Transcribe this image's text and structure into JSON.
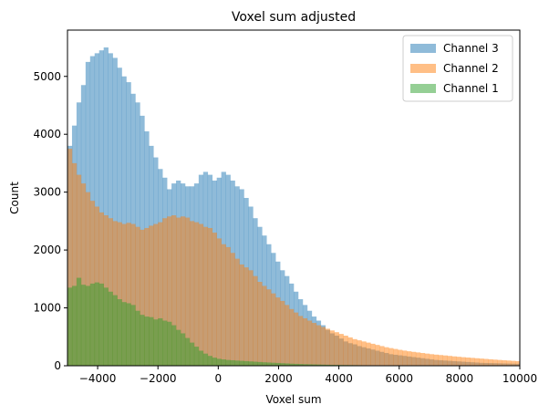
{
  "chart_data": {
    "type": "histogram",
    "title": "Voxel sum adjusted",
    "xlabel": "Voxel sum",
    "ylabel": "Count",
    "xlim": [
      -5000,
      10000
    ],
    "ylim": [
      0,
      5800
    ],
    "bin_start": -5000,
    "bin_width": 150,
    "x_ticks": [
      -4000,
      -2000,
      0,
      2000,
      4000,
      6000,
      8000,
      10000
    ],
    "x_tick_labels": [
      "−4000",
      "−2000",
      "0",
      "2000",
      "4000",
      "6000",
      "8000",
      "10000"
    ],
    "y_ticks": [
      0,
      1000,
      2000,
      3000,
      4000,
      5000
    ],
    "y_tick_labels": [
      "0",
      "1000",
      "2000",
      "3000",
      "4000",
      "5000"
    ],
    "grid": false,
    "legend_position": "top-right",
    "alpha": 0.5,
    "series": [
      {
        "name": "Channel 3",
        "color": "#1f77b4",
        "values": [
          3800,
          4150,
          4550,
          4850,
          5250,
          5350,
          5400,
          5450,
          5500,
          5400,
          5320,
          5150,
          5000,
          4900,
          4700,
          4550,
          4320,
          4050,
          3800,
          3600,
          3400,
          3250,
          3050,
          3150,
          3200,
          3150,
          3100,
          3100,
          3150,
          3300,
          3350,
          3300,
          3200,
          3250,
          3350,
          3300,
          3200,
          3100,
          3050,
          2900,
          2750,
          2550,
          2400,
          2250,
          2100,
          1950,
          1800,
          1650,
          1550,
          1420,
          1280,
          1150,
          1050,
          950,
          850,
          780,
          700,
          620,
          560,
          520,
          470,
          420,
          390,
          370,
          340,
          320,
          300,
          280,
          260,
          240,
          220,
          200,
          190,
          180,
          170,
          160,
          150,
          140,
          130,
          120,
          110,
          100,
          95,
          90,
          85,
          80,
          75,
          70,
          65,
          60,
          55,
          50,
          48,
          46,
          44,
          42,
          40,
          38,
          36,
          34
        ]
      },
      {
        "name": "Channel 2",
        "color": "#ff7f0e",
        "values": [
          3750,
          3500,
          3300,
          3150,
          3000,
          2850,
          2750,
          2650,
          2600,
          2550,
          2500,
          2480,
          2450,
          2470,
          2450,
          2400,
          2350,
          2380,
          2420,
          2450,
          2480,
          2550,
          2580,
          2600,
          2560,
          2580,
          2560,
          2500,
          2480,
          2450,
          2400,
          2380,
          2300,
          2200,
          2100,
          2050,
          1950,
          1850,
          1750,
          1700,
          1650,
          1550,
          1450,
          1380,
          1320,
          1250,
          1180,
          1120,
          1050,
          980,
          920,
          860,
          820,
          780,
          740,
          700,
          670,
          640,
          610,
          580,
          550,
          520,
          490,
          460,
          440,
          420,
          400,
          380,
          360,
          340,
          320,
          305,
          290,
          275,
          262,
          250,
          240,
          230,
          220,
          210,
          200,
          192,
          185,
          178,
          170,
          162,
          155,
          148,
          142,
          136,
          130,
          124,
          118,
          112,
          106,
          100,
          95,
          90,
          85,
          80
        ]
      },
      {
        "name": "Channel 1",
        "color": "#2ca02c",
        "values": [
          1350,
          1380,
          1520,
          1400,
          1380,
          1420,
          1440,
          1420,
          1350,
          1280,
          1220,
          1150,
          1100,
          1080,
          1050,
          950,
          880,
          850,
          840,
          800,
          820,
          780,
          760,
          700,
          620,
          560,
          480,
          400,
          330,
          260,
          210,
          170,
          140,
          120,
          110,
          100,
          95,
          90,
          85,
          80,
          75,
          70,
          65,
          60,
          56,
          52,
          48,
          44,
          40,
          36,
          33,
          30,
          27,
          25,
          23,
          21,
          19,
          17,
          15,
          14,
          13,
          12,
          11,
          10,
          9,
          8,
          7,
          6,
          6,
          5,
          5,
          4,
          4,
          4,
          3,
          3,
          3,
          3,
          2,
          2,
          2,
          2,
          2,
          2,
          1,
          1,
          1,
          1,
          1,
          1,
          1,
          1,
          1,
          1,
          1,
          1,
          1,
          1,
          1,
          1
        ]
      }
    ]
  }
}
